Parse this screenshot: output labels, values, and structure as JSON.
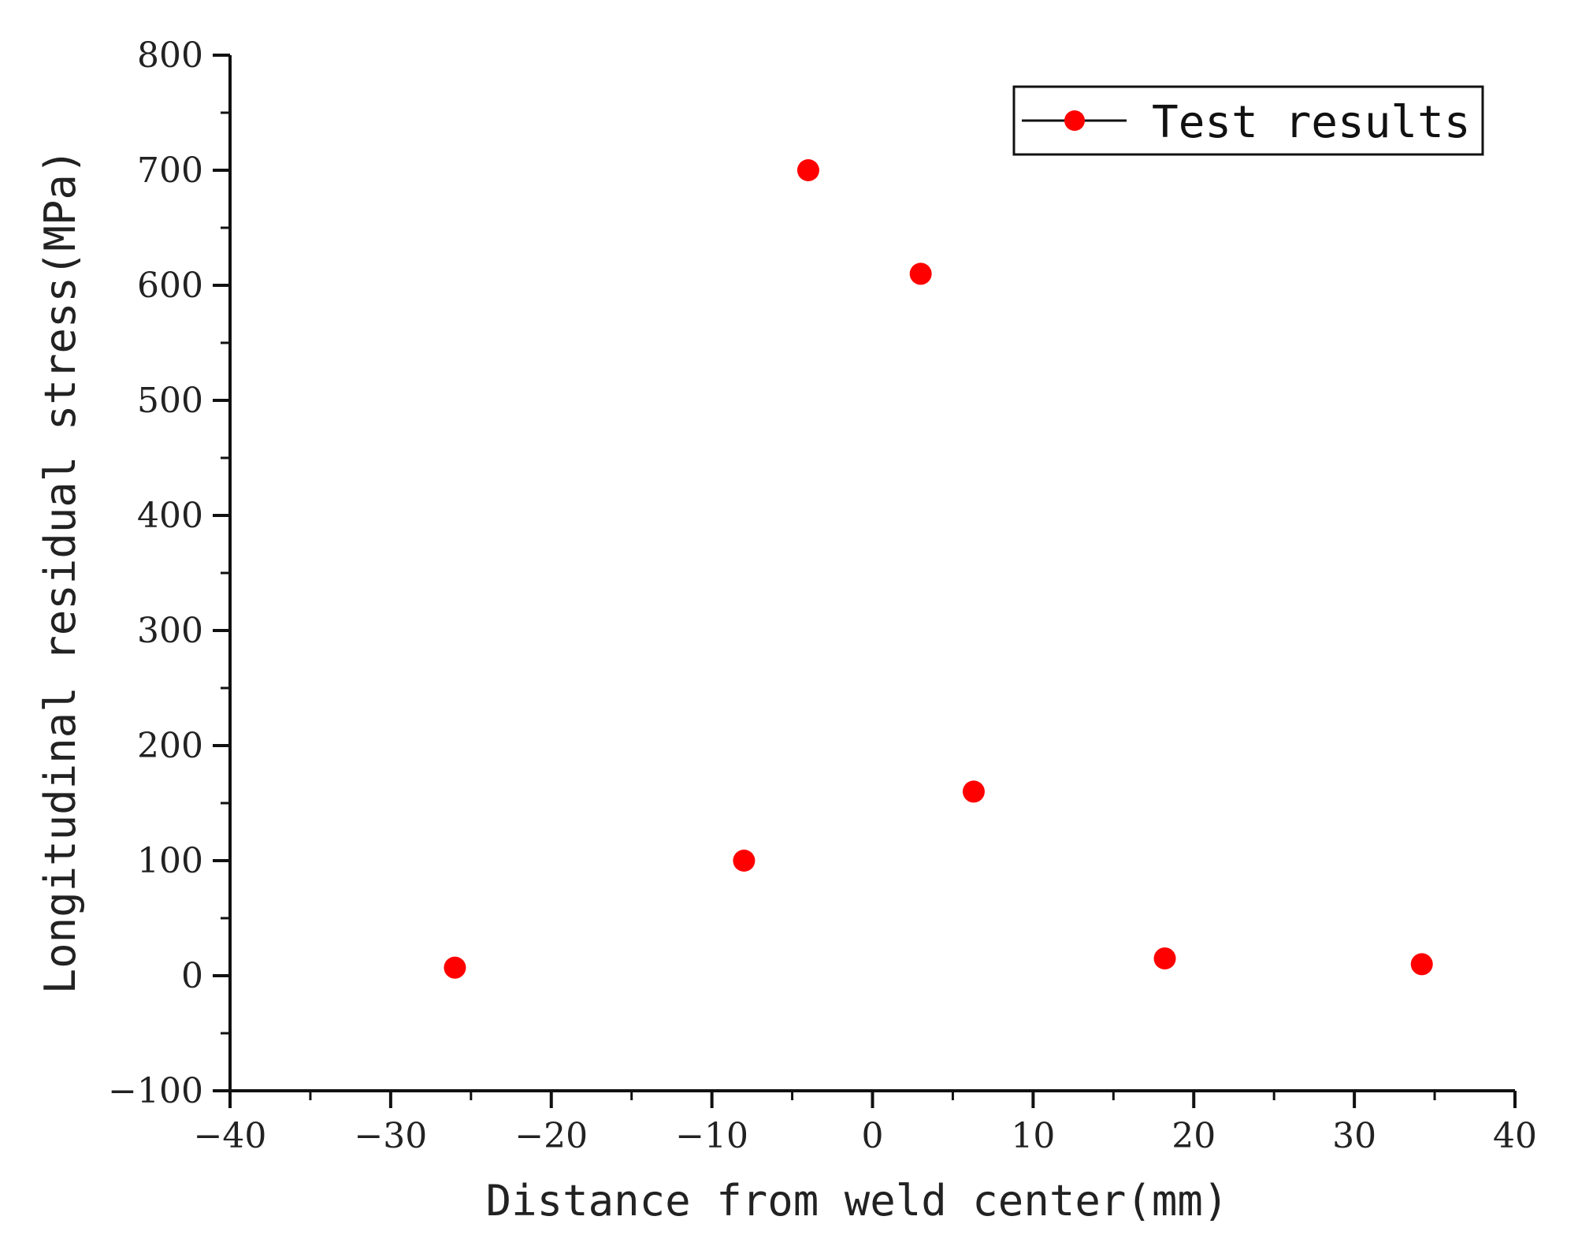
{
  "chart_data": {
    "type": "scatter",
    "title": "",
    "xlabel": "Distance from weld center(mm)",
    "ylabel": "Longitudinal residual stress(MPa)",
    "xlim": [
      -40,
      40
    ],
    "ylim": [
      -100,
      800
    ],
    "x_ticks": [
      -40,
      -30,
      -20,
      -10,
      0,
      10,
      20,
      30,
      40
    ],
    "y_ticks": [
      -100,
      0,
      100,
      200,
      300,
      400,
      500,
      600,
      700,
      800
    ],
    "x_tick_labels": [
      "−40",
      "−30",
      "−20",
      "−10",
      "0",
      "10",
      "20",
      "30",
      "40"
    ],
    "y_tick_labels": [
      "−100",
      "0",
      "100",
      "200",
      "300",
      "400",
      "500",
      "600",
      "700",
      "800"
    ],
    "grid": false,
    "legend_position": "top-right",
    "series": [
      {
        "name": "Test results",
        "color": "#ff0000",
        "marker": "circle",
        "x": [
          -26,
          -8,
          -4,
          3,
          6.3,
          18.2,
          34.2
        ],
        "y": [
          7,
          100,
          700,
          610,
          160,
          15,
          10
        ]
      }
    ]
  }
}
